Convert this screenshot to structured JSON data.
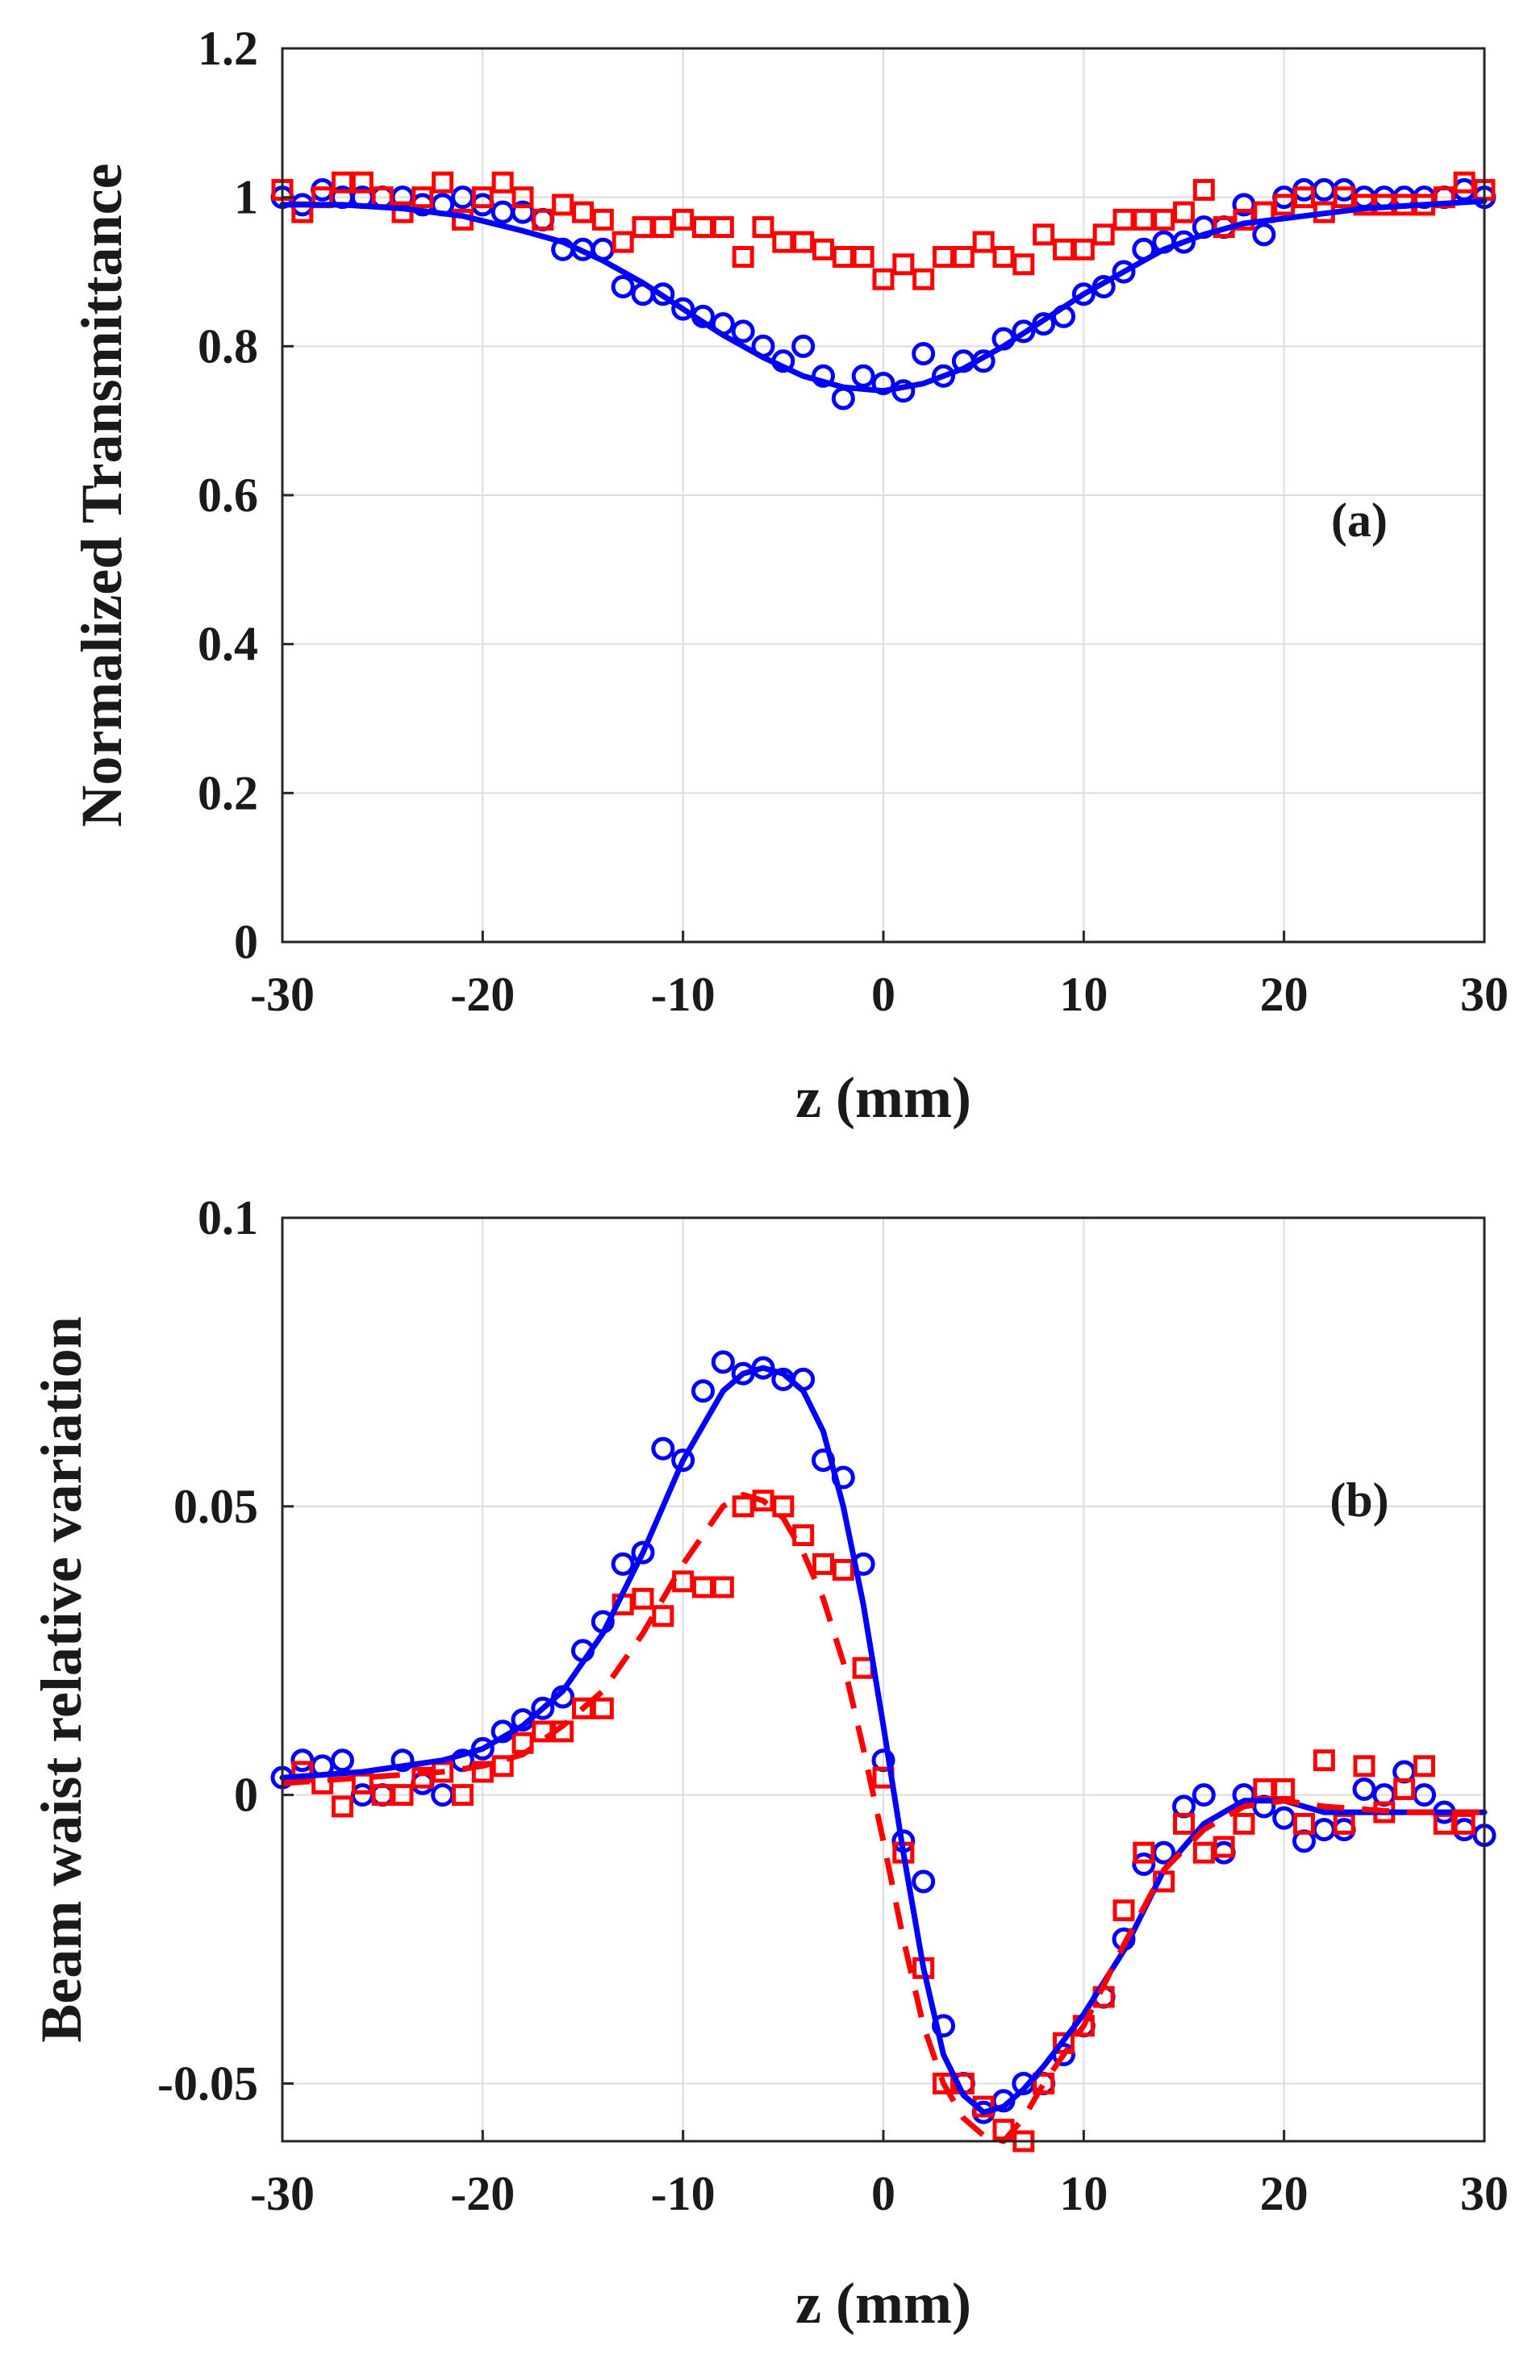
{
  "chart_data": [
    {
      "type": "line",
      "panel_label": "(a)",
      "title": "",
      "xlabel": "z (mm)",
      "ylabel": "Normalized Transmittance",
      "xlim": [
        -30,
        30
      ],
      "ylim": [
        0,
        1.2
      ],
      "xticks": [
        -30,
        -20,
        -10,
        0,
        10,
        20,
        30
      ],
      "xtick_labels": [
        "-30",
        "-20",
        "-10",
        "0",
        "10",
        "20",
        "30"
      ],
      "yticks": [
        0,
        0.2,
        0.4,
        0.6,
        0.8,
        1.0,
        1.2
      ],
      "ytick_labels": [
        "0",
        "0.2",
        "0.4",
        "0.6",
        "0.8",
        "1",
        "1.2"
      ],
      "grid": true,
      "colors": {
        "blue": "#0000ff",
        "red": "#ff0000",
        "axis": "#262626",
        "grid": "#dcdcdc"
      },
      "series": [
        {
          "name": "circles data",
          "style": "marker-circle",
          "color": "#0000ff",
          "x": [
            -30,
            -29,
            -28,
            -27,
            -26,
            -25,
            -24,
            -23,
            -22,
            -21,
            -20,
            -19,
            -18,
            -17,
            -16,
            -15,
            -14,
            -13,
            -12,
            -11,
            -10,
            -9,
            -8,
            -7,
            -6,
            -5,
            -4,
            -3,
            -2,
            -1,
            0,
            1,
            2,
            3,
            4,
            5,
            6,
            7,
            8,
            9,
            10,
            11,
            12,
            13,
            14,
            15,
            16,
            17,
            18,
            19,
            20,
            21,
            22,
            23,
            24,
            25,
            26,
            27,
            28,
            29,
            30
          ],
          "y": [
            1.0,
            0.99,
            1.01,
            1.0,
            1.0,
            1.0,
            1.0,
            0.99,
            0.99,
            1.0,
            0.99,
            0.98,
            0.98,
            0.97,
            0.93,
            0.93,
            0.93,
            0.88,
            0.87,
            0.87,
            0.85,
            0.84,
            0.83,
            0.82,
            0.8,
            0.78,
            0.8,
            0.76,
            0.73,
            0.76,
            0.75,
            0.74,
            0.79,
            0.76,
            0.78,
            0.78,
            0.81,
            0.82,
            0.83,
            0.84,
            0.87,
            0.88,
            0.9,
            0.93,
            0.94,
            0.94,
            0.96,
            0.96,
            0.99,
            0.95,
            1.0,
            1.01,
            1.01,
            1.01,
            1.0,
            1.0,
            1.0,
            1.0,
            1.0,
            1.01,
            1.0
          ]
        },
        {
          "name": "squares data",
          "style": "marker-square",
          "color": "#ff0000",
          "x": [
            -30,
            -29,
            -28,
            -27,
            -26,
            -25,
            -24,
            -23,
            -22,
            -21,
            -20,
            -19,
            -18,
            -17,
            -16,
            -15,
            -14,
            -13,
            -12,
            -11,
            -10,
            -9,
            -8,
            -7,
            -6,
            -5,
            -4,
            -3,
            -2,
            -1,
            0,
            1,
            2,
            3,
            4,
            5,
            6,
            7,
            8,
            9,
            10,
            11,
            12,
            13,
            14,
            15,
            16,
            17,
            18,
            19,
            20,
            21,
            22,
            23,
            24,
            25,
            26,
            27,
            28,
            29,
            30
          ],
          "y": [
            1.01,
            0.98,
            1.0,
            1.02,
            1.02,
            1.0,
            0.98,
            1.0,
            1.02,
            0.97,
            1.0,
            1.02,
            1.0,
            0.97,
            0.99,
            0.98,
            0.97,
            0.94,
            0.96,
            0.96,
            0.97,
            0.96,
            0.96,
            0.92,
            0.96,
            0.94,
            0.94,
            0.93,
            0.92,
            0.92,
            0.89,
            0.91,
            0.89,
            0.92,
            0.92,
            0.94,
            0.92,
            0.91,
            0.95,
            0.93,
            0.93,
            0.95,
            0.97,
            0.97,
            0.97,
            0.98,
            1.01,
            0.96,
            0.97,
            0.98,
            0.99,
            1.0,
            0.98,
            1.0,
            0.99,
            0.99,
            0.99,
            0.99,
            1.0,
            1.02,
            1.01
          ]
        },
        {
          "name": "circles fit",
          "style": "line-solid",
          "color": "#0000ff",
          "x": [
            -30,
            -27,
            -24,
            -21,
            -18,
            -16,
            -14,
            -12,
            -10,
            -8,
            -6,
            -4,
            -2,
            0,
            2,
            4,
            6,
            8,
            10,
            12,
            14,
            16,
            18,
            21,
            24,
            27,
            30
          ],
          "y": [
            0.99,
            0.99,
            0.985,
            0.975,
            0.955,
            0.94,
            0.915,
            0.885,
            0.85,
            0.815,
            0.785,
            0.76,
            0.745,
            0.74,
            0.75,
            0.77,
            0.8,
            0.835,
            0.87,
            0.9,
            0.93,
            0.95,
            0.965,
            0.975,
            0.985,
            0.99,
            0.995
          ]
        }
      ]
    },
    {
      "type": "line",
      "panel_label": "(b)",
      "title": "",
      "xlabel": "z (mm)",
      "ylabel": "Beam waist relative variation",
      "xlim": [
        -30,
        30
      ],
      "ylim": [
        -0.06,
        0.1
      ],
      "xticks": [
        -30,
        -20,
        -10,
        0,
        10,
        20,
        30
      ],
      "xtick_labels": [
        "-30",
        "-20",
        "-10",
        "0",
        "10",
        "20",
        "30"
      ],
      "yticks": [
        -0.05,
        0,
        0.05,
        0.1
      ],
      "ytick_labels": [
        "-0.05",
        "0",
        "0.05",
        "0.1"
      ],
      "grid": true,
      "colors": {
        "blue": "#0000ff",
        "red": "#ff0000",
        "axis": "#262626",
        "grid": "#dcdcdc"
      },
      "series": [
        {
          "name": "circles data",
          "style": "marker-circle",
          "color": "#0000ff",
          "x": [
            -30,
            -29,
            -28,
            -27,
            -26,
            -25,
            -24,
            -23,
            -22,
            -21,
            -20,
            -19,
            -18,
            -17,
            -16,
            -15,
            -14,
            -13,
            -12,
            -11,
            -10,
            -9,
            -8,
            -7,
            -6,
            -5,
            -4,
            -3,
            -2,
            -1,
            0,
            1,
            2,
            3,
            4,
            5,
            6,
            7,
            8,
            9,
            10,
            11,
            12,
            13,
            14,
            15,
            16,
            17,
            18,
            19,
            20,
            21,
            22,
            23,
            24,
            25,
            26,
            27,
            28,
            29,
            30
          ],
          "y": [
            0.003,
            0.006,
            0.005,
            0.006,
            0.0,
            0.0,
            0.006,
            0.002,
            0.0,
            0.006,
            0.008,
            0.011,
            0.013,
            0.015,
            0.017,
            0.025,
            0.03,
            0.04,
            0.042,
            0.06,
            0.058,
            0.07,
            0.075,
            0.073,
            0.074,
            0.072,
            0.072,
            0.058,
            0.055,
            0.04,
            0.006,
            -0.008,
            -0.015,
            -0.04,
            -0.05,
            -0.055,
            -0.053,
            -0.05,
            -0.05,
            -0.045,
            -0.04,
            -0.035,
            -0.025,
            -0.012,
            -0.01,
            -0.002,
            0.0,
            -0.01,
            0.0,
            -0.002,
            -0.004,
            -0.008,
            -0.006,
            -0.006,
            0.001,
            0.0,
            0.004,
            0.0,
            -0.003,
            -0.006,
            -0.007
          ]
        },
        {
          "name": "squares data",
          "style": "marker-square",
          "color": "#ff0000",
          "x": [
            -29,
            -28,
            -27,
            -26,
            -25,
            -24,
            -23,
            -22,
            -21,
            -20,
            -19,
            -18,
            -17,
            -16,
            -15,
            -14,
            -13,
            -12,
            -11,
            -10,
            -9,
            -8,
            -7,
            -6,
            -5,
            -4,
            -3,
            -2,
            -1,
            0,
            1,
            2,
            3,
            4,
            5,
            6,
            7,
            8,
            9,
            10,
            11,
            12,
            13,
            14,
            15,
            16,
            17,
            18,
            19,
            20,
            21,
            22,
            23,
            24,
            25,
            26,
            27,
            28,
            29
          ],
          "y": [
            0.004,
            0.002,
            -0.002,
            0.002,
            0.0,
            0.0,
            0.003,
            0.004,
            0.0,
            0.004,
            0.005,
            0.009,
            0.011,
            0.011,
            0.015,
            0.015,
            0.033,
            0.034,
            0.031,
            0.037,
            0.036,
            0.036,
            0.05,
            0.051,
            0.05,
            0.045,
            0.04,
            0.039,
            0.022,
            0.003,
            -0.01,
            -0.03,
            -0.05,
            -0.05,
            -0.054,
            -0.058,
            -0.06,
            -0.05,
            -0.043,
            -0.04,
            -0.035,
            -0.02,
            -0.01,
            -0.015,
            -0.005,
            -0.01,
            -0.009,
            -0.005,
            0.001,
            0.001,
            -0.005,
            0.006,
            -0.005,
            0.005,
            -0.003,
            0.001,
            0.005,
            -0.005,
            -0.005
          ]
        },
        {
          "name": "circles fit",
          "style": "line-solid",
          "color": "#0000ff",
          "x": [
            -30,
            -26,
            -22,
            -20,
            -18,
            -16,
            -14,
            -12,
            -10,
            -8,
            -7,
            -6,
            -5,
            -4,
            -3,
            -2,
            -1,
            0,
            1,
            2,
            3,
            4,
            5,
            6,
            7,
            8,
            10,
            12,
            14,
            16,
            18,
            20,
            22,
            26,
            30
          ],
          "y": [
            0.003,
            0.004,
            0.006,
            0.008,
            0.012,
            0.018,
            0.028,
            0.042,
            0.058,
            0.07,
            0.073,
            0.074,
            0.073,
            0.07,
            0.063,
            0.05,
            0.033,
            0.012,
            -0.01,
            -0.03,
            -0.045,
            -0.052,
            -0.055,
            -0.054,
            -0.051,
            -0.047,
            -0.038,
            -0.027,
            -0.013,
            -0.005,
            -0.001,
            -0.001,
            -0.003,
            -0.003,
            -0.003
          ]
        },
        {
          "name": "squares fit",
          "style": "line-dashed",
          "color": "#ff0000",
          "x": [
            -30,
            -26,
            -22,
            -20,
            -18,
            -16,
            -14,
            -12,
            -10,
            -8,
            -7,
            -6,
            -5,
            -4,
            -3,
            -2,
            -1,
            0,
            1,
            2,
            3,
            4,
            5,
            6,
            7,
            8,
            10,
            12,
            14,
            16,
            18,
            20,
            22,
            26,
            30
          ],
          "y": [
            0.002,
            0.003,
            0.004,
            0.005,
            0.007,
            0.012,
            0.018,
            0.028,
            0.04,
            0.05,
            0.052,
            0.051,
            0.048,
            0.042,
            0.034,
            0.023,
            0.008,
            -0.008,
            -0.025,
            -0.04,
            -0.05,
            -0.056,
            -0.059,
            -0.06,
            -0.056,
            -0.05,
            -0.04,
            -0.026,
            -0.013,
            -0.006,
            -0.002,
            -0.001,
            -0.002,
            -0.003,
            -0.003
          ]
        }
      ]
    }
  ]
}
